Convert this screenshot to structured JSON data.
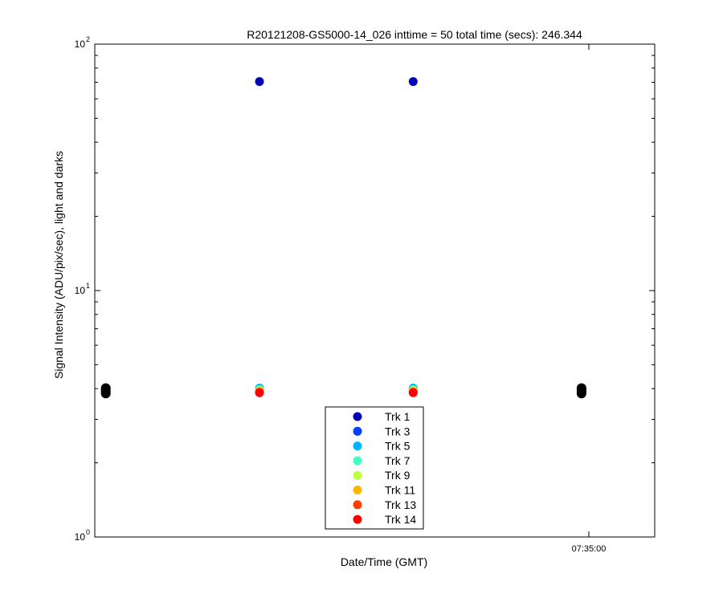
{
  "chart_data": {
    "type": "scatter",
    "title": "R20121208-GS5000-14_026 inttime = 50 total time (secs): 246.344",
    "xlabel": "Date/Time (GMT)",
    "ylabel": "Signal Intensity (ADU/pix/sec), light and darks",
    "yscale": "log",
    "ylim": [
      1,
      100
    ],
    "y_ticks": [
      {
        "value": 1,
        "base": "10",
        "exp": "0"
      },
      {
        "value": 10,
        "base": "10",
        "exp": "1"
      },
      {
        "value": 100,
        "base": "10",
        "exp": "2"
      }
    ],
    "xlim": [
      "07:32:45",
      "07:35:18"
    ],
    "x_ticks": [
      {
        "value": "07:35:00",
        "label": "07:35:00"
      }
    ],
    "legend_position": "bottom-center",
    "series": [
      {
        "name": "Trk 1",
        "color": "#0000b4",
        "x": [
          "07:33:30",
          "07:34:12"
        ],
        "y": [
          70.5,
          70.5
        ]
      },
      {
        "name": "Trk 3",
        "color": "#0040ff",
        "x": [
          "07:33:30",
          "07:34:12"
        ],
        "y": [
          4.0,
          4.0
        ]
      },
      {
        "name": "Trk 5",
        "color": "#00b4ff",
        "x": [
          "07:33:30",
          "07:34:12"
        ],
        "y": [
          4.02,
          4.02
        ]
      },
      {
        "name": "Trk 7",
        "color": "#40ffbf",
        "x": [
          "07:33:30",
          "07:34:12"
        ],
        "y": [
          3.96,
          3.96
        ]
      },
      {
        "name": "Trk 9",
        "color": "#bfff40",
        "x": [
          "07:33:30",
          "07:34:12"
        ],
        "y": [
          3.93,
          3.93
        ]
      },
      {
        "name": "Trk 11",
        "color": "#ffb400",
        "x": [
          "07:33:30",
          "07:34:12"
        ],
        "y": [
          3.9,
          3.9
        ]
      },
      {
        "name": "Trk 13",
        "color": "#ff4000",
        "x": [
          "07:33:30",
          "07:34:12"
        ],
        "y": [
          3.87,
          3.87
        ]
      },
      {
        "name": "Trk 14",
        "color": "#ff0000",
        "x": [
          "07:33:30",
          "07:34:12"
        ],
        "y": [
          3.85,
          3.85
        ]
      }
    ],
    "dark_points": {
      "color": "#000000",
      "x": [
        "07:32:48",
        "07:32:48",
        "07:32:48",
        "07:32:48",
        "07:32:48",
        "07:34:58",
        "07:34:58",
        "07:34:58",
        "07:34:58",
        "07:34:58"
      ],
      "y": [
        3.82,
        3.87,
        3.92,
        3.97,
        4.02,
        3.82,
        3.87,
        3.92,
        3.97,
        4.02
      ]
    }
  }
}
